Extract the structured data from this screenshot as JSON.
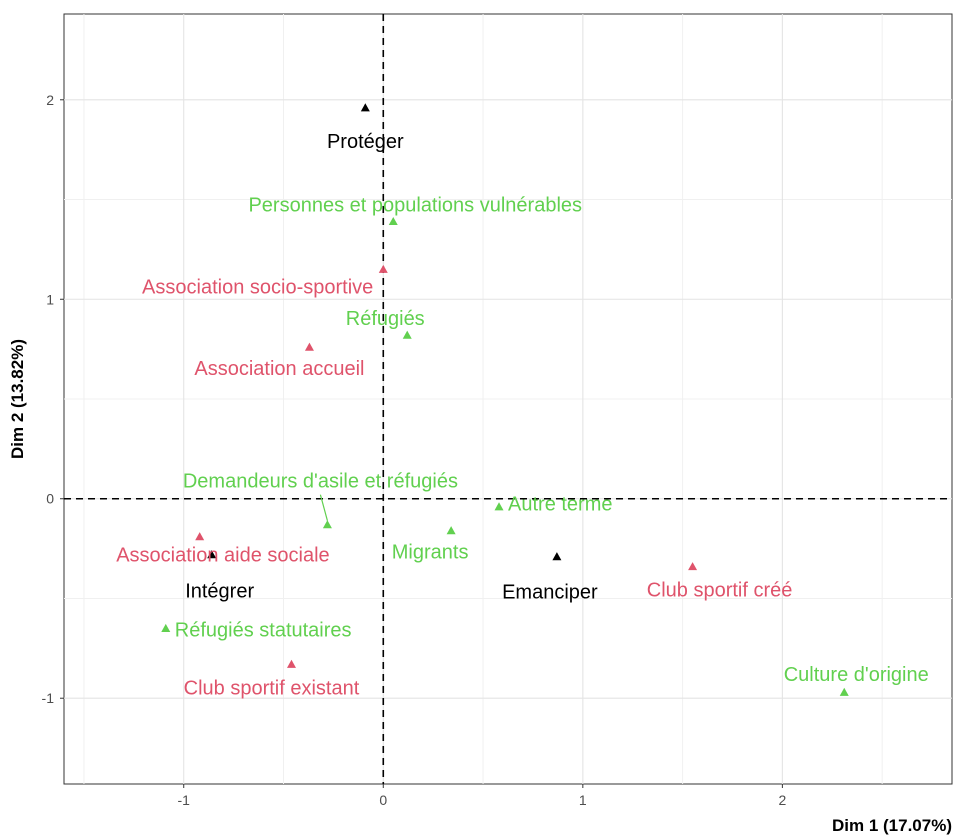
{
  "chart_data": {
    "type": "scatter",
    "title": "",
    "xlabel": "Dim 1 (17.07%)",
    "ylabel": "Dim 2 (13.82%)",
    "xlim": [
      -1.6,
      2.85
    ],
    "ylim": [
      -1.43,
      2.43
    ],
    "x_ticks": [
      -1,
      0,
      1,
      2
    ],
    "y_ticks": [
      -1,
      0,
      1,
      2
    ],
    "x_tick_labels": [
      "-1",
      "0",
      "1",
      "2"
    ],
    "y_tick_labels": [
      "-1",
      "0",
      "1",
      "2"
    ],
    "grid": true,
    "reference_lines": {
      "x": 0,
      "y": 0,
      "style": "dashed"
    },
    "colors": {
      "black": "#000000",
      "red": "#DF536B",
      "green": "#61D04F"
    },
    "points": [
      {
        "label": "Protéger",
        "x": -0.09,
        "y": 1.96,
        "color": "black"
      },
      {
        "label": "Intégrer",
        "x": -0.86,
        "y": -0.28,
        "color": "black"
      },
      {
        "label": "Emanciper",
        "x": 0.87,
        "y": -0.29,
        "color": "black"
      },
      {
        "label": "Association socio-sportive",
        "x": 0.0,
        "y": 1.15,
        "color": "red"
      },
      {
        "label": "Association accueil",
        "x": -0.37,
        "y": 0.76,
        "color": "red"
      },
      {
        "label": "Association aide sociale",
        "x": -0.92,
        "y": -0.19,
        "color": "red"
      },
      {
        "label": "Club sportif créé",
        "x": 1.55,
        "y": -0.34,
        "color": "red"
      },
      {
        "label": "Club sportif existant",
        "x": -0.46,
        "y": -0.83,
        "color": "red"
      },
      {
        "label": "Personnes et populations vulnérables",
        "x": 0.05,
        "y": 1.39,
        "color": "green"
      },
      {
        "label": "Réfugiés",
        "x": 0.12,
        "y": 0.82,
        "color": "green"
      },
      {
        "label": "Demandeurs d'asile et réfugiés",
        "x": -0.28,
        "y": -0.13,
        "color": "green"
      },
      {
        "label": "Autre terme",
        "x": 0.58,
        "y": -0.04,
        "color": "green"
      },
      {
        "label": "Migrants",
        "x": 0.34,
        "y": -0.16,
        "color": "green"
      },
      {
        "label": "Réfugiés statutaires",
        "x": -1.09,
        "y": -0.65,
        "color": "green"
      },
      {
        "label": "Culture d'origine",
        "x": 2.31,
        "y": -0.97,
        "color": "green"
      }
    ]
  }
}
